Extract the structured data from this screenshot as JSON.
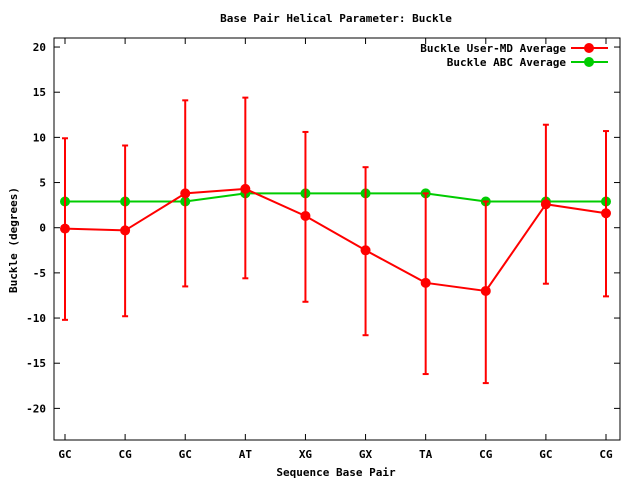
{
  "chart_data": {
    "type": "line",
    "title": "Base Pair Helical Parameter: Buckle",
    "xlabel": "Sequence Base Pair",
    "ylabel": "Buckle (degrees)",
    "categories": [
      "GC",
      "CG",
      "GC",
      "AT",
      "XG",
      "GX",
      "TA",
      "CG",
      "GC",
      "CG"
    ],
    "ylim": [
      -23.5,
      21
    ],
    "yticks": [
      -20,
      -15,
      -10,
      -5,
      0,
      5,
      10,
      15,
      20
    ],
    "grid": false,
    "legend_position": "top-right",
    "series": [
      {
        "name": "Buckle User-MD Average",
        "color": "#ff0000",
        "values": [
          -0.1,
          -0.3,
          3.8,
          4.3,
          1.3,
          -2.5,
          -6.1,
          -7.0,
          2.6,
          1.6
        ],
        "error_low": [
          -10.2,
          -9.8,
          -6.5,
          -5.6,
          -8.2,
          -11.9,
          -16.2,
          -17.2,
          -6.2,
          -7.6
        ],
        "error_high": [
          9.9,
          9.1,
          14.1,
          14.4,
          10.6,
          6.7,
          3.8,
          2.9,
          11.4,
          10.7
        ]
      },
      {
        "name": "Buckle ABC Average",
        "color": "#00cc00",
        "values": [
          2.9,
          2.9,
          2.9,
          3.8,
          3.8,
          3.8,
          3.8,
          2.9,
          2.9,
          2.9
        ]
      }
    ]
  }
}
